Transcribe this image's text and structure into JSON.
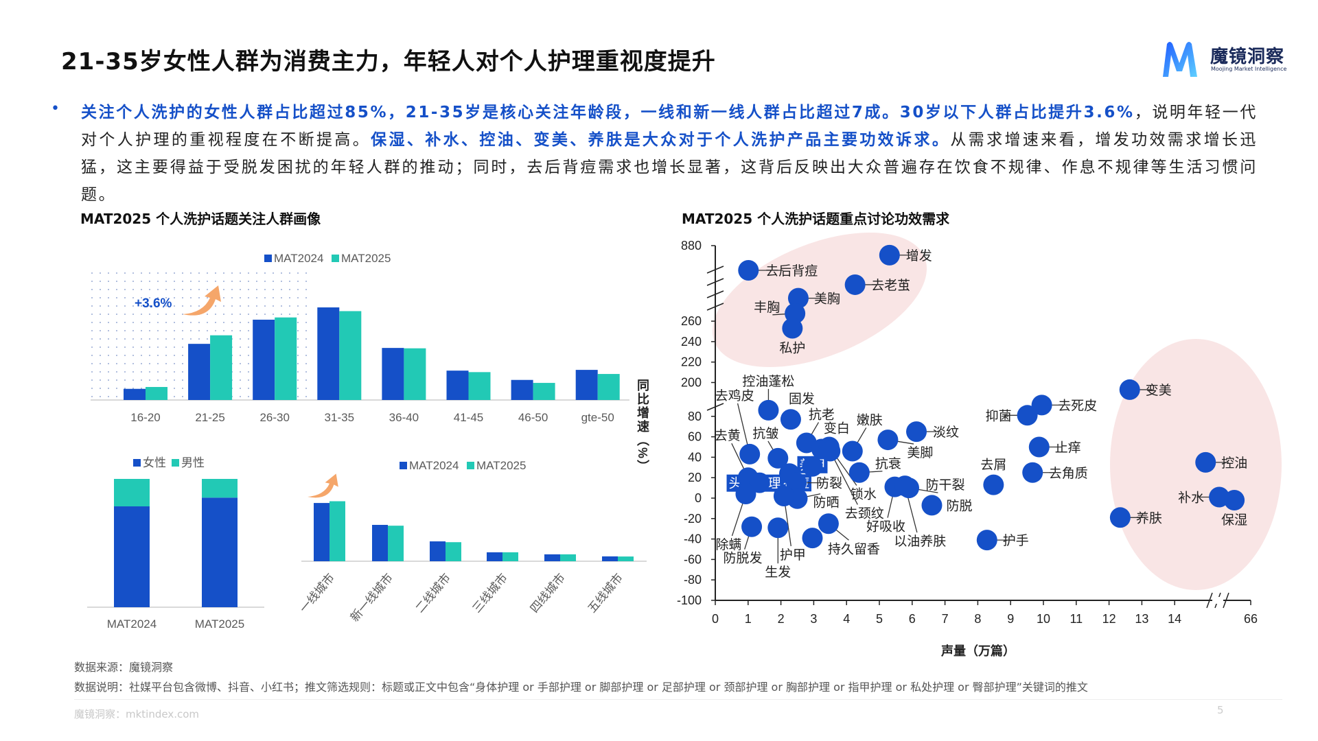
{
  "header": {
    "title": "21-35岁女性人群为消费主力，年轻人对个人护理重视度提升",
    "logo_name": "魔镜洞察",
    "logo_sub": "Moojing Market Intelligence"
  },
  "summary": {
    "segments": [
      {
        "text": "关注个人洗护的女性人群占比超过85%，21-35岁是核心关注年龄段，一线和新一线人群占比超过7成。30岁以下人群占比提升3.6%",
        "highlight": true
      },
      {
        "text": "，说明年轻一代对个人护理的重视程度在不断提高。",
        "highlight": false
      },
      {
        "text": "保湿、补水、控油、变美、养肤是大众对于个人洗护产品主要功效诉求。",
        "highlight": true
      },
      {
        "text": "从需求增速来看，增发功效需求增长迅猛，这主要得益于受脱发困扰的年轻人群的推动；同时，去后背痘需求也增长显著，这背后反映出大众普遍存在饮食不规律、作息不规律等生活习惯问题。",
        "highlight": false
      }
    ]
  },
  "left_panel": {
    "title": "MAT2025 个人洗护话题关注人群画像"
  },
  "right_panel": {
    "title": "MAT2025 个人洗护话题重点讨论功效需求"
  },
  "colors": {
    "mat2024": "#1550c8",
    "mat2025": "#22c9b5",
    "female": "#1550c8",
    "male": "#22c9b5",
    "point": "#1550c8",
    "highlight_area": "#f9e5e5",
    "accent_arrow": "#f5a66a"
  },
  "chart_data": [
    {
      "type": "bar",
      "categories": [
        "16-20",
        "21-25",
        "26-30",
        "31-35",
        "36-40",
        "41-45",
        "46-50",
        "gte-50"
      ],
      "series": [
        {
          "name": "MAT2024",
          "values": [
            3.0,
            15.1,
            21.6,
            24.9,
            14.0,
            7.9,
            5.4,
            8.1
          ]
        },
        {
          "name": "MAT2025",
          "values": [
            3.5,
            17.4,
            22.2,
            23.9,
            13.9,
            7.5,
            4.6,
            7.0
          ]
        }
      ],
      "annotation": "+3.6%",
      "legend": "top",
      "grid": false
    },
    {
      "type": "bar",
      "stacked": true,
      "categories": [
        "MAT2024",
        "MAT2025"
      ],
      "series": [
        {
          "name": "女性",
          "values": [
            78.6,
            85.4
          ]
        },
        {
          "name": "男性",
          "values": [
            21.4,
            14.6
          ]
        }
      ],
      "legend": "top",
      "grid": false
    },
    {
      "type": "bar",
      "categories": [
        "一线城市",
        "新一线城市",
        "二线城市",
        "三线城市",
        "四线城市",
        "五线城市"
      ],
      "series": [
        {
          "name": "MAT2024",
          "values": [
            43.1,
            26.9,
            14.7,
            6.6,
            5.1,
            3.6
          ]
        },
        {
          "name": "MAT2025",
          "values": [
            44.4,
            26.3,
            14.1,
            6.6,
            5.1,
            3.5
          ]
        }
      ],
      "legend": "top",
      "grid": false
    },
    {
      "type": "scatter",
      "xlabel": "声量（万篇）",
      "ylabel": "同比增速（%）",
      "x_ticks": [
        "0",
        "1",
        "2",
        "3",
        "4",
        "5",
        "6",
        "7",
        "8",
        "9",
        "10",
        "11",
        "12",
        "13",
        "14",
        "66"
      ],
      "y_ticks": [
        "-100",
        "-80",
        "-60",
        "-40",
        "-20",
        "0",
        "20",
        "40",
        "60",
        "80",
        "200",
        "220",
        "240",
        "260",
        "880"
      ],
      "x_axis_break": [
        14,
        66
      ],
      "y_axis_breaks": [
        [
          80,
          200
        ],
        [
          260,
          880
        ]
      ],
      "points": [
        {
          "name": "去后背痘",
          "x": 1.01,
          "y": 677
        },
        {
          "name": "增发",
          "x": 5.31,
          "y": 802
        },
        {
          "name": "去老茧",
          "x": 4.26,
          "y": 559
        },
        {
          "name": "美胸",
          "x": 2.53,
          "y": 448
        },
        {
          "name": "丰胸",
          "x": 2.43,
          "y": 323
        },
        {
          "name": "私护",
          "x": 2.35,
          "y": 253
        },
        {
          "name": "变美",
          "x": 12.63,
          "y": 193
        },
        {
          "name": "去死皮",
          "x": 9.95,
          "y": 91
        },
        {
          "name": "抑菌",
          "x": 9.51,
          "y": 81
        },
        {
          "name": "止痒",
          "x": 9.87,
          "y": 50
        },
        {
          "name": "去角质",
          "x": 9.67,
          "y": 25
        },
        {
          "name": "去屑",
          "x": 8.48,
          "y": 13
        },
        {
          "name": "护手",
          "x": 8.28,
          "y": -41
        },
        {
          "name": "养肤",
          "x": 12.34,
          "y": -19
        },
        {
          "name": "控油",
          "x": 35.2,
          "y": 35
        },
        {
          "name": "补水",
          "x": 44.5,
          "y": 1
        },
        {
          "name": "保湿",
          "x": 54.8,
          "y": -2
        },
        {
          "name": "淡纹",
          "x": 6.13,
          "y": 65
        },
        {
          "name": "美脚",
          "x": 5.26,
          "y": 57
        },
        {
          "name": "嫩肤",
          "x": 4.18,
          "y": 46
        },
        {
          "name": "抗衰",
          "x": 4.39,
          "y": 25
        },
        {
          "name": "控油蓬松",
          "x": 1.62,
          "y": 86
        },
        {
          "name": "固发",
          "x": 2.3,
          "y": 77
        },
        {
          "name": "去鸡皮",
          "x": 1.05,
          "y": 43
        },
        {
          "name": "去黄",
          "x": 1.0,
          "y": 20
        },
        {
          "name": "抗皱",
          "x": 1.91,
          "y": 39
        },
        {
          "name": "抗老",
          "x": 2.78,
          "y": 54
        },
        {
          "name": "变白",
          "x": 3.24,
          "y": 48
        },
        {
          "name": "锁水",
          "x": 3.47,
          "y": 50
        },
        {
          "name": "去颈纹",
          "x": 3.5,
          "y": 46
        },
        {
          "name": "养甲",
          "x": 2.96,
          "y": 31
        },
        {
          "name": "头皮护理",
          "x": 1.35,
          "y": 15
        },
        {
          "name": "祛痘",
          "x": 2.26,
          "y": 24
        },
        {
          "name": "防裂",
          "x": 2.47,
          "y": 15
        },
        {
          "name": "防晒",
          "x": 2.5,
          "y": -0.5
        },
        {
          "name": "护甲",
          "x": 2.09,
          "y": 2
        },
        {
          "name": "除螨",
          "x": 0.93,
          "y": 4
        },
        {
          "name": "防脱发",
          "x": 1.11,
          "y": -28
        },
        {
          "name": "生发",
          "x": 1.91,
          "y": -29
        },
        {
          "name": "持久留香",
          "x": 3.45,
          "y": -25
        },
        {
          "name": "",
          "x": 2.96,
          "y": -39
        },
        {
          "name": "好吸收",
          "x": 5.47,
          "y": 11
        },
        {
          "name": "以油养肤",
          "x": 5.78,
          "y": 12
        },
        {
          "name": "防干裂",
          "x": 5.9,
          "y": 10
        },
        {
          "name": "防脱",
          "x": 6.6,
          "y": -7
        }
      ]
    }
  ],
  "footer": {
    "source": "数据来源：魔镜洞察",
    "note": "数据说明：社媒平台包含微博、抖音、小红书；推文筛选规则：标题或正文中包含“身体护理 or 手部护理 or 脚部护理 or 足部护理 or 颈部护理 or 胸部护理 or 指甲护理 or 私处护理 or 臀部护理”关键词的推文",
    "site": "魔镜洞察：mktindex.com",
    "page": "5"
  }
}
